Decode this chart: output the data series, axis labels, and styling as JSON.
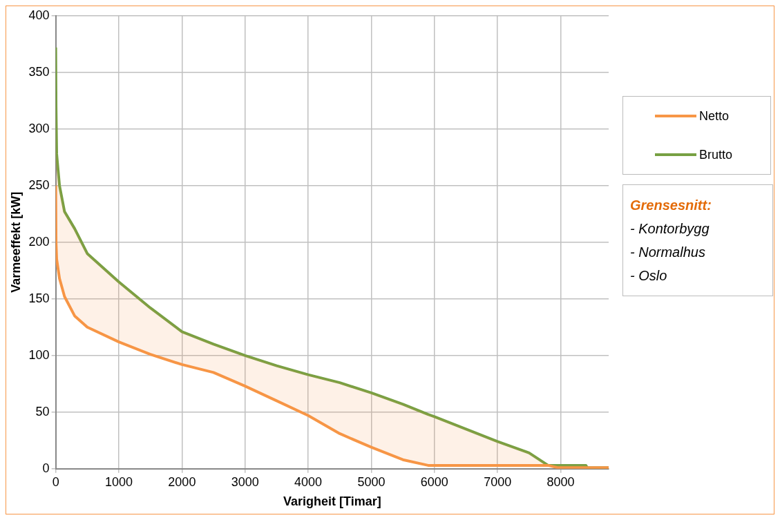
{
  "chart_data": {
    "type": "line",
    "xlabel": "Varigheit [Timar]",
    "ylabel": "Varmeeffekt [kW]",
    "xlim": [
      0,
      8760
    ],
    "xticks": [
      0,
      1000,
      2000,
      3000,
      4000,
      5000,
      6000,
      7000,
      8000
    ],
    "ylim": [
      0,
      400
    ],
    "yticks": [
      0,
      50,
      100,
      150,
      200,
      250,
      300,
      350,
      400
    ],
    "grid": true,
    "legend": "right",
    "marker": "none",
    "line_style": "solid",
    "x": [
      0,
      5,
      15,
      60,
      140,
      300,
      500,
      1000,
      1500,
      2000,
      2500,
      3000,
      3500,
      4000,
      4500,
      5000,
      5500,
      5900,
      6000,
      6500,
      7000,
      7500,
      7800,
      7950,
      8400,
      8420,
      8760
    ],
    "series": [
      {
        "name": "Netto",
        "color": "#f79646",
        "values": [
          250,
          200,
          185,
          168,
          152,
          135,
          125,
          112,
          101,
          92,
          85,
          73,
          60,
          47,
          31,
          19,
          8,
          3,
          3,
          3,
          3,
          3,
          3,
          1,
          1,
          1,
          1
        ],
        "lower": [
          250,
          200,
          185,
          168,
          152,
          135,
          125,
          112,
          101,
          92,
          85,
          73,
          60,
          47,
          31,
          19,
          8,
          3,
          3,
          3,
          3,
          3,
          3,
          1,
          1,
          1,
          1
        ],
        "upper": [
          372,
          320,
          278,
          250,
          227,
          212,
          190,
          165,
          142,
          121,
          110,
          100,
          91,
          83,
          76,
          67,
          57,
          48,
          46,
          35,
          24,
          14,
          3,
          3,
          3,
          1,
          1
        ]
      },
      {
        "name": "Brutto",
        "color": "#77a043",
        "values": [
          372,
          320,
          278,
          250,
          227,
          212,
          190,
          165,
          142,
          121,
          110,
          100,
          91,
          83,
          76,
          67,
          57,
          48,
          46,
          35,
          24,
          14,
          3,
          3,
          3,
          1,
          1
        ]
      }
    ],
    "annotations": [
      "Grensesnitt:",
      "- Kontorbygg",
      "- Normalhus",
      "- Oslo"
    ]
  }
}
